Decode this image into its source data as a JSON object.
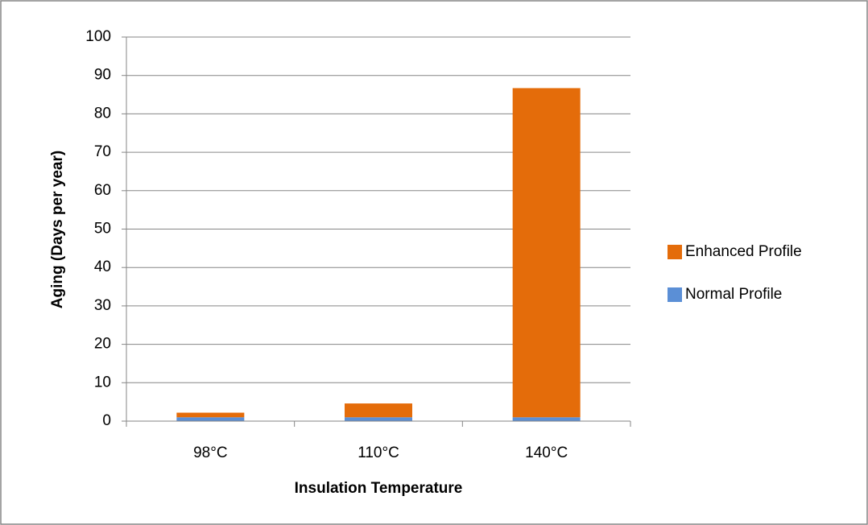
{
  "chart_data": {
    "type": "bar",
    "stacked": true,
    "x_label": "Insulation Temperature",
    "y_label": "Aging (Days  per year)",
    "categories": [
      "98°C",
      "110°C",
      "140°C"
    ],
    "series": [
      {
        "name": "Normal Profile",
        "color": "#5b8fd6",
        "values": [
          1,
          1,
          1
        ]
      },
      {
        "name": "Enhanced Profile",
        "color": "#e46c0a",
        "values": [
          1.2,
          3.6,
          85.7
        ]
      }
    ],
    "ylim": [
      0,
      100
    ],
    "yticks": [
      0,
      10,
      20,
      30,
      40,
      50,
      60,
      70,
      80,
      90,
      100
    ],
    "grid": true,
    "legend": "right"
  }
}
